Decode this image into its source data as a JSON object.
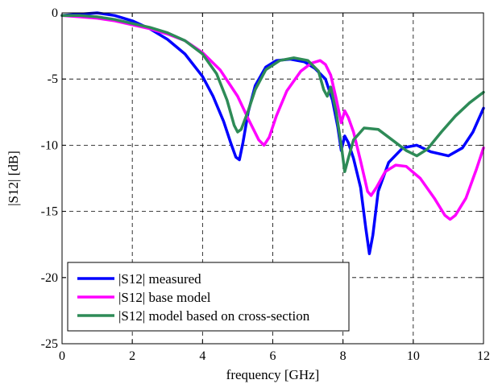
{
  "chart_data": {
    "type": "line",
    "title": "",
    "xlabel": "frequency [GHz]",
    "ylabel": "|S12| [dB]",
    "xlim": [
      0,
      12
    ],
    "ylim": [
      -25,
      0
    ],
    "grid": true,
    "legend_position": "bottom-left",
    "x_ticks": [
      0,
      2,
      4,
      6,
      8,
      10,
      12
    ],
    "y_ticks": [
      0,
      -5,
      -10,
      -15,
      -20,
      -25
    ],
    "x_tick_labels": [
      "0",
      "2",
      "4",
      "6",
      "8",
      "10",
      "12"
    ],
    "y_tick_labels": [
      "0",
      "-5",
      "-10",
      "-15",
      "-20",
      "-25"
    ],
    "series": [
      {
        "name": "|S12| measured",
        "color": "#0000ff",
        "x": [
          0,
          0.5,
          1.0,
          1.5,
          2.0,
          2.5,
          3.0,
          3.5,
          4.0,
          4.3,
          4.6,
          4.8,
          4.95,
          5.05,
          5.15,
          5.3,
          5.5,
          5.8,
          6.1,
          6.5,
          6.9,
          7.2,
          7.5,
          7.7,
          7.85,
          7.95,
          8.05,
          8.15,
          8.3,
          8.5,
          8.65,
          8.75,
          8.85,
          9.0,
          9.3,
          9.7,
          10.1,
          10.5,
          11.0,
          11.4,
          11.7,
          12.0
        ],
        "y": [
          -0.2,
          -0.1,
          0.0,
          -0.2,
          -0.6,
          -1.2,
          -2.0,
          -3.1,
          -4.8,
          -6.3,
          -8.2,
          -9.8,
          -10.9,
          -11.1,
          -9.8,
          -7.5,
          -5.5,
          -4.1,
          -3.6,
          -3.5,
          -3.7,
          -4.2,
          -5.0,
          -6.6,
          -8.6,
          -10.4,
          -9.3,
          -9.8,
          -11.0,
          -13.2,
          -16.3,
          -18.2,
          -16.8,
          -13.5,
          -11.3,
          -10.2,
          -10.0,
          -10.5,
          -10.8,
          -10.2,
          -9.0,
          -7.2
        ]
      },
      {
        "name": "|S12| base model",
        "color": "#ff00ff",
        "x": [
          0,
          0.5,
          1.0,
          1.5,
          2.0,
          2.5,
          3.0,
          3.5,
          4.0,
          4.5,
          5.0,
          5.3,
          5.6,
          5.75,
          5.9,
          6.1,
          6.4,
          6.8,
          7.1,
          7.35,
          7.5,
          7.65,
          7.8,
          7.95,
          8.05,
          8.15,
          8.3,
          8.5,
          8.7,
          8.8,
          8.95,
          9.2,
          9.5,
          9.8,
          10.2,
          10.6,
          10.9,
          11.05,
          11.2,
          11.5,
          11.8,
          12.0
        ],
        "y": [
          -0.2,
          -0.3,
          -0.4,
          -0.6,
          -0.9,
          -1.2,
          -1.6,
          -2.1,
          -3.0,
          -4.3,
          -6.3,
          -8.0,
          -9.6,
          -10.0,
          -9.4,
          -7.8,
          -5.9,
          -4.4,
          -3.8,
          -3.6,
          -3.9,
          -4.7,
          -6.4,
          -8.3,
          -7.4,
          -7.9,
          -9.0,
          -11.2,
          -13.5,
          -13.8,
          -13.2,
          -12.0,
          -11.5,
          -11.6,
          -12.5,
          -14.0,
          -15.3,
          -15.6,
          -15.3,
          -14.0,
          -11.8,
          -10.2
        ]
      },
      {
        "name": "|S12| model based on cross-section",
        "color": "#2e8b57",
        "x": [
          0,
          0.5,
          1.0,
          1.5,
          2.0,
          2.5,
          3.0,
          3.5,
          4.0,
          4.4,
          4.7,
          4.9,
          5.0,
          5.1,
          5.3,
          5.5,
          5.8,
          6.2,
          6.6,
          7.0,
          7.3,
          7.45,
          7.55,
          7.65,
          7.8,
          7.95,
          8.05,
          8.15,
          8.3,
          8.6,
          9.0,
          9.4,
          9.8,
          10.1,
          10.4,
          10.8,
          11.2,
          11.6,
          12.0
        ],
        "y": [
          -0.2,
          -0.2,
          -0.3,
          -0.5,
          -0.8,
          -1.1,
          -1.5,
          -2.1,
          -3.1,
          -4.6,
          -6.6,
          -8.5,
          -9.0,
          -8.8,
          -7.4,
          -5.8,
          -4.3,
          -3.6,
          -3.4,
          -3.6,
          -4.4,
          -5.8,
          -6.3,
          -5.6,
          -7.4,
          -10.0,
          -12.0,
          -11.0,
          -9.6,
          -8.7,
          -8.8,
          -9.6,
          -10.4,
          -10.8,
          -10.3,
          -9.0,
          -7.8,
          -6.8,
          -6.0
        ]
      }
    ]
  }
}
